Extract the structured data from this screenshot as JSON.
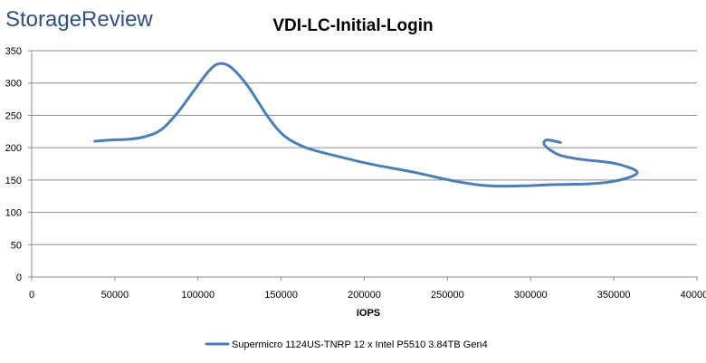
{
  "logo_text": "StorageReview",
  "chart_data": {
    "type": "line",
    "title": "VDI-LC-Initial-Login",
    "xlabel": "IOPS",
    "ylabel": "",
    "xlim": [
      0,
      400000
    ],
    "ylim": [
      0,
      350
    ],
    "x_ticks": [
      0,
      50000,
      100000,
      150000,
      200000,
      250000,
      300000,
      350000,
      400000
    ],
    "y_ticks": [
      0,
      50,
      100,
      150,
      200,
      250,
      300,
      350
    ],
    "grid": true,
    "legend_position": "bottom",
    "series": [
      {
        "name": "Supermicro 1124US-TNRP 12 x Intel P5510 3.84TB Gen4",
        "color": "#4a7ebb",
        "points": [
          [
            38000,
            210
          ],
          [
            48000,
            212
          ],
          [
            58000,
            213
          ],
          [
            68000,
            217
          ],
          [
            78000,
            228
          ],
          [
            88000,
            255
          ],
          [
            98000,
            290
          ],
          [
            107000,
            320
          ],
          [
            113000,
            330
          ],
          [
            120000,
            324
          ],
          [
            130000,
            295
          ],
          [
            142000,
            248
          ],
          [
            152000,
            218
          ],
          [
            165000,
            200
          ],
          [
            185000,
            186
          ],
          [
            205000,
            174
          ],
          [
            230000,
            162
          ],
          [
            255000,
            148
          ],
          [
            275000,
            141
          ],
          [
            295000,
            141
          ],
          [
            315000,
            143
          ],
          [
            335000,
            144
          ],
          [
            350000,
            148
          ],
          [
            362000,
            157
          ],
          [
            363000,
            165
          ],
          [
            350000,
            176
          ],
          [
            330000,
            182
          ],
          [
            318000,
            188
          ],
          [
            312000,
            196
          ],
          [
            308000,
            206
          ],
          [
            310000,
            212
          ],
          [
            318000,
            208
          ]
        ]
      }
    ]
  }
}
